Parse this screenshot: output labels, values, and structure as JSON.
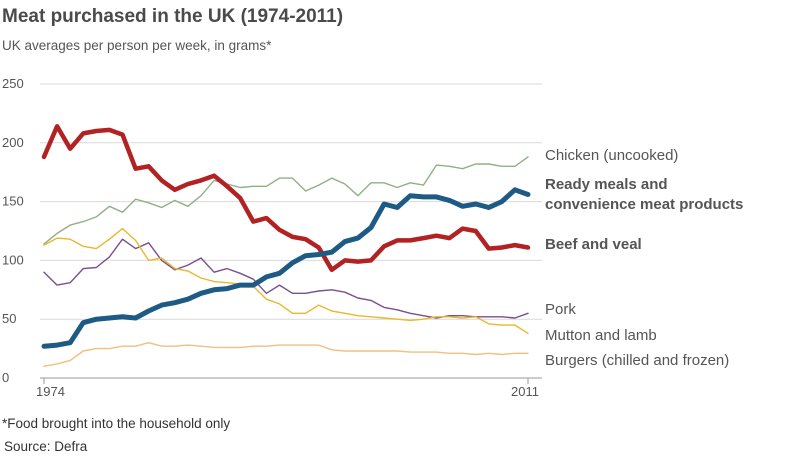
{
  "chart_data": {
    "type": "line",
    "title": "Meat purchased in the UK (1974-2011)",
    "subtitle": "UK averages per person per week, in grams*",
    "footnote": "*Food brought into the household only",
    "source": "Source: Defra",
    "xlim": [
      1974,
      2011
    ],
    "ylim": [
      0,
      250
    ],
    "yticks": [
      0,
      50,
      100,
      150,
      200,
      250
    ],
    "xtick_labels": [
      "1974",
      "2011"
    ],
    "x": [
      1974,
      1975,
      1976,
      1977,
      1978,
      1979,
      1980,
      1981,
      1982,
      1983,
      1984,
      1985,
      1986,
      1987,
      1988,
      1989,
      1990,
      1991,
      1992,
      1993,
      1994,
      1995,
      1996,
      1997,
      1998,
      1999,
      2000,
      2001,
      2002,
      2003,
      2004,
      2005,
      2006,
      2007,
      2008,
      2009,
      2010,
      2011
    ],
    "series": [
      {
        "name": "Chicken (uncooked)",
        "color": "#8fb184",
        "bold": false,
        "width": 1.4,
        "values": [
          114,
          123,
          130,
          133,
          137,
          146,
          141,
          152,
          149,
          145,
          151,
          146,
          155,
          168,
          165,
          162,
          163,
          163,
          170,
          170,
          159,
          164,
          170,
          165,
          155,
          166,
          166,
          162,
          166,
          164,
          181,
          180,
          178,
          182,
          182,
          180,
          180,
          188
        ]
      },
      {
        "name": "Ready meals and convenience meat products",
        "color": "#1d5b84",
        "bold": true,
        "width": 5,
        "values": [
          27,
          28,
          30,
          47,
          50,
          51,
          52,
          51,
          57,
          62,
          64,
          67,
          72,
          75,
          76,
          79,
          79,
          86,
          89,
          98,
          104,
          105,
          107,
          116,
          119,
          128,
          148,
          145,
          155,
          154,
          154,
          151,
          146,
          148,
          145,
          150,
          160,
          156
        ]
      },
      {
        "name": "Beef and veal",
        "color": "#b22223",
        "bold": true,
        "width": 4.5,
        "values": [
          188,
          214,
          195,
          208,
          210,
          211,
          207,
          178,
          180,
          168,
          160,
          165,
          168,
          172,
          163,
          153,
          133,
          136,
          126,
          120,
          118,
          111,
          92,
          100,
          99,
          100,
          112,
          117,
          117,
          119,
          121,
          119,
          127,
          125,
          110,
          111,
          113,
          111
        ]
      },
      {
        "name": "Pork",
        "color": "#7a4f8c",
        "bold": false,
        "width": 1.4,
        "values": [
          90,
          79,
          81,
          93,
          94,
          103,
          118,
          110,
          115,
          100,
          92,
          96,
          102,
          90,
          93,
          89,
          84,
          72,
          79,
          72,
          72,
          74,
          75,
          73,
          68,
          66,
          60,
          58,
          55,
          53,
          51,
          53,
          53,
          52,
          52,
          52,
          51,
          55
        ]
      },
      {
        "name": "Mutton and lamb",
        "color": "#e8b82e",
        "bold": false,
        "width": 1.4,
        "values": [
          113,
          119,
          118,
          112,
          110,
          118,
          127,
          117,
          100,
          102,
          93,
          91,
          85,
          82,
          81,
          80,
          78,
          67,
          63,
          55,
          55,
          62,
          57,
          55,
          53,
          52,
          51,
          50,
          49,
          50,
          52,
          52,
          51,
          52,
          46,
          45,
          45,
          38
        ]
      },
      {
        "name": "Burgers (chilled and frozen)",
        "color": "#f1bf80",
        "bold": false,
        "width": 1.4,
        "values": [
          10,
          12,
          15,
          23,
          25,
          25,
          27,
          27,
          30,
          27,
          27,
          28,
          27,
          26,
          26,
          26,
          27,
          27,
          28,
          28,
          28,
          28,
          24,
          23,
          23,
          23,
          23,
          23,
          22,
          22,
          22,
          21,
          21,
          20,
          21,
          20,
          21,
          21
        ]
      }
    ]
  }
}
